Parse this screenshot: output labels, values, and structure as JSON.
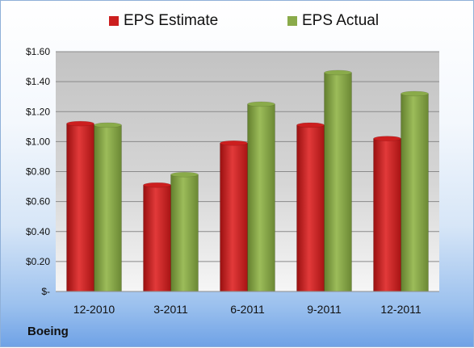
{
  "chart_data": {
    "type": "bar",
    "categories": [
      "12-2010",
      "3-2011",
      "6-2011",
      "9-2011",
      "12-2011"
    ],
    "series": [
      {
        "name": "EPS Estimate",
        "values": [
          1.12,
          0.71,
          0.99,
          1.11,
          1.02
        ],
        "color": "#cc1f1f"
      },
      {
        "name": "EPS Actual",
        "values": [
          1.11,
          0.78,
          1.25,
          1.46,
          1.32
        ],
        "color": "#8aab4a"
      }
    ],
    "y_ticks": [
      {
        "value": 0,
        "label": "$-"
      },
      {
        "value": 0.2,
        "label": "$0.20"
      },
      {
        "value": 0.4,
        "label": "$0.40"
      },
      {
        "value": 0.6,
        "label": "$0.60"
      },
      {
        "value": 0.8,
        "label": "$0.80"
      },
      {
        "value": 1.0,
        "label": "$1.00"
      },
      {
        "value": 1.2,
        "label": "$1.20"
      },
      {
        "value": 1.4,
        "label": "$1.40"
      },
      {
        "value": 1.6,
        "label": "$1.60"
      }
    ],
    "ylim": [
      0,
      1.6
    ],
    "grid": true,
    "legend_position": "top"
  },
  "footer": {
    "company": "Boeing"
  }
}
